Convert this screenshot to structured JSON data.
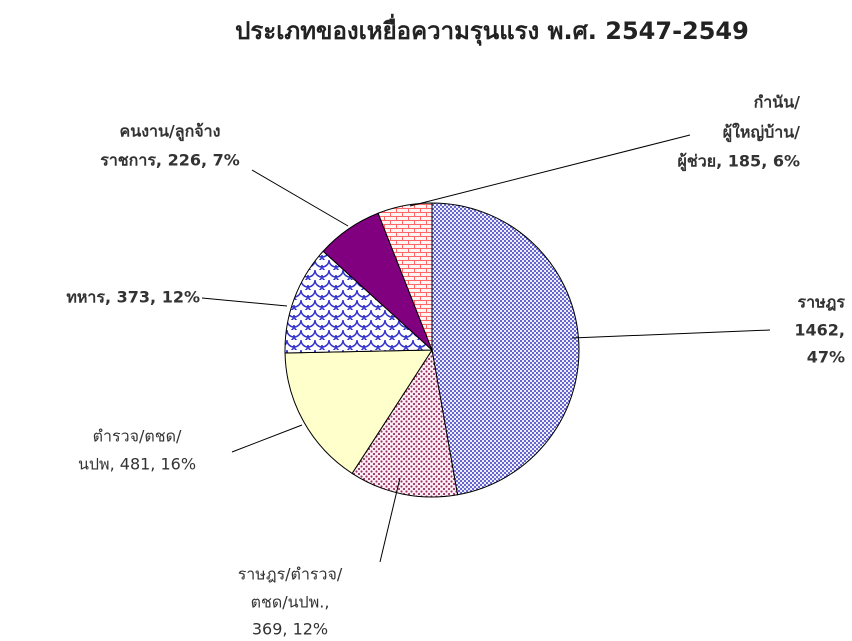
{
  "chart_data": {
    "type": "pie",
    "title": "ประเภทของเหยื่อความรุนแรง พ.ศ. 2547-2549",
    "values": [
      1462,
      369,
      481,
      373,
      226,
      185
    ],
    "value_labels": [
      [
        "ราษฎร",
        "1462,",
        "47%"
      ],
      [
        "ราษฎร/ตำรวจ/",
        "ตชด/นปพ.,",
        "369, 12%"
      ],
      [
        "ตำรวจ/ตชด/",
        "นปพ, 481, 16%"
      ],
      [
        "ทหาร, 373, 12%"
      ],
      [
        "คนงาน/ลูกจ้าง",
        "ราชการ, 226, 7%"
      ],
      [
        "กำนัน/",
        "ผู้ใหญ่บ้าน/",
        "ผู้ช่วย, 185, 6%"
      ]
    ],
    "colors": [
      "#6666cc",
      "#993366",
      "#ffffcc",
      "#3333cc",
      "#800080",
      "#ff6666"
    ],
    "patterns": [
      "crosshatch",
      "dots",
      "solid",
      "scales",
      "solid",
      "brick"
    ]
  }
}
